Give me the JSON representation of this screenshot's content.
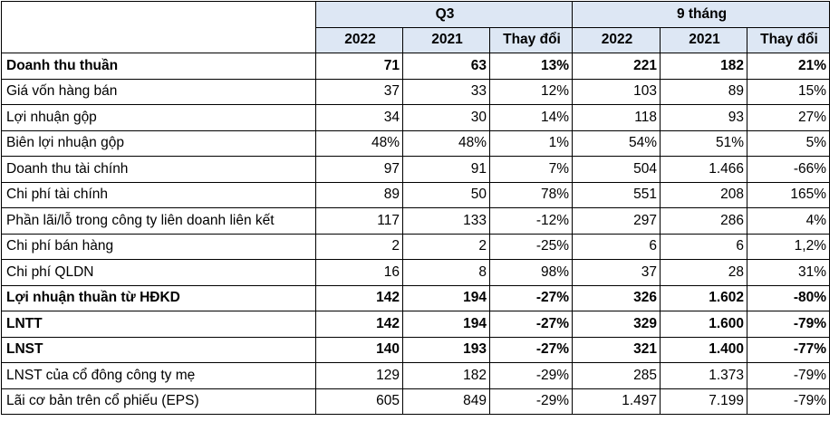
{
  "header": {
    "group1": "Q3",
    "group2": "9 tháng",
    "columns": [
      "2022",
      "2021",
      "Thay đổi",
      "2022",
      "2021",
      "Thay đổi"
    ]
  },
  "rows": [
    {
      "label": "Doanh thu thuần",
      "bold": true,
      "values": [
        "71",
        "63",
        "13%",
        "221",
        "182",
        "21%"
      ]
    },
    {
      "label": "Giá vốn hàng bán",
      "bold": false,
      "values": [
        "37",
        "33",
        "12%",
        "103",
        "89",
        "15%"
      ]
    },
    {
      "label": "Lợi nhuận gộp",
      "bold": false,
      "values": [
        "34",
        "30",
        "14%",
        "118",
        "93",
        "27%"
      ]
    },
    {
      "label": "Biên lợi nhuận gộp",
      "bold": false,
      "values": [
        "48%",
        "48%",
        "1%",
        "54%",
        "51%",
        "5%"
      ]
    },
    {
      "label": "Doanh thu tài chính",
      "bold": false,
      "values": [
        "97",
        "91",
        "7%",
        "504",
        "1.466",
        "-66%"
      ]
    },
    {
      "label": "Chi phí tài chính",
      "bold": false,
      "values": [
        "89",
        "50",
        "78%",
        "551",
        "208",
        "165%"
      ]
    },
    {
      "label": "Phần lãi/lỗ trong công ty liên doanh liên kết",
      "bold": false,
      "values": [
        "117",
        "133",
        "-12%",
        "297",
        "286",
        "4%"
      ]
    },
    {
      "label": "Chi phí bán hàng",
      "bold": false,
      "values": [
        "2",
        "2",
        "-25%",
        "6",
        "6",
        "1,2%"
      ]
    },
    {
      "label": "Chi phí QLDN",
      "bold": false,
      "values": [
        "16",
        "8",
        "98%",
        "37",
        "28",
        "31%"
      ]
    },
    {
      "label": "Lợi nhuận thuần từ HĐKD",
      "bold": true,
      "values": [
        "142",
        "194",
        "-27%",
        "326",
        "1.602",
        "-80%"
      ]
    },
    {
      "label": "LNTT",
      "bold": true,
      "values": [
        "142",
        "194",
        "-27%",
        "329",
        "1.600",
        "-79%"
      ]
    },
    {
      "label": "LNST",
      "bold": true,
      "values": [
        "140",
        "193",
        "-27%",
        "321",
        "1.400",
        "-77%"
      ]
    },
    {
      "label": "LNST của cổ đông công ty mẹ",
      "bold": false,
      "values": [
        "129",
        "182",
        "-29%",
        "285",
        "1.373",
        "-79%"
      ]
    },
    {
      "label": "Lãi cơ bản trên cổ phiếu (EPS)",
      "bold": false,
      "values": [
        "605",
        "849",
        "-29%",
        "1.497",
        "7.199",
        "-79%"
      ]
    }
  ]
}
